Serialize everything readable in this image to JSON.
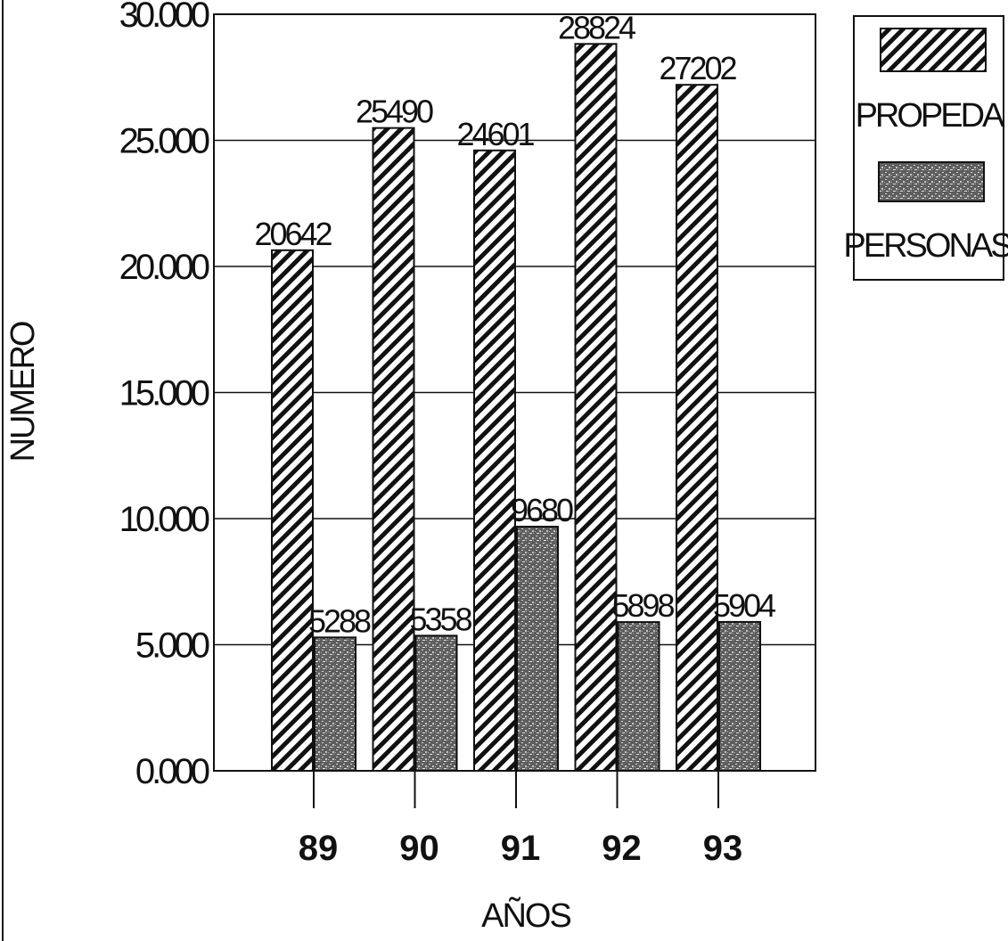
{
  "chart_data": {
    "type": "bar",
    "title": "",
    "xlabel": "AÑOS",
    "ylabel": "NUMERO",
    "categories": [
      "89",
      "90",
      "91",
      "92",
      "93"
    ],
    "series": [
      {
        "name": "PROPEDA",
        "values": [
          20642,
          25490,
          24601,
          28824,
          27202
        ],
        "labels": [
          "20642",
          "25490",
          "24601",
          "28824",
          "27202"
        ],
        "pattern": "diagonal-hatch",
        "color": "#1a1a1a"
      },
      {
        "name": "PERSONAS",
        "values": [
          5288,
          5358,
          9680,
          5898,
          5904
        ],
        "labels": [
          "5288",
          "5358",
          "9680",
          "5898",
          "5904"
        ],
        "pattern": "speckled-gray",
        "color": "#6b6b6b"
      }
    ],
    "yticks": [
      "0.000",
      "5.000",
      "10.000",
      "15.000",
      "20.000",
      "25.000",
      "30.000"
    ],
    "ylim": [
      0,
      30000
    ],
    "grid": true,
    "legend_position": "top-right"
  }
}
